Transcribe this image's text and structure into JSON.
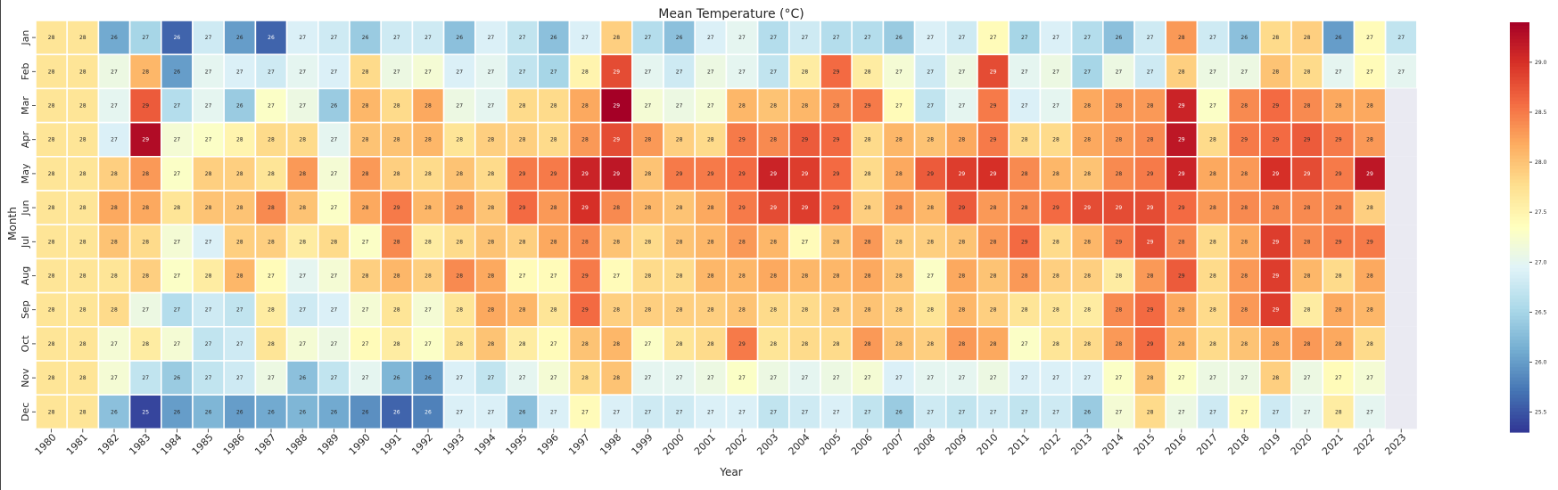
{
  "chart_data": {
    "type": "heatmap",
    "title": "Mean Temperature (°C)",
    "xlabel": "Year",
    "ylabel": "Month",
    "colormap": "RdYlBu_r",
    "missing_color": "#eaeaf2",
    "vmin": 25.3,
    "vmax": 29.4,
    "colorbar_ticks": [
      "25.5",
      "26.0",
      "26.5",
      "27.0",
      "27.5",
      "28.0",
      "28.5",
      "29.0"
    ],
    "x": [
      "1980",
      "1981",
      "1982",
      "1983",
      "1984",
      "1985",
      "1986",
      "1987",
      "1988",
      "1989",
      "1990",
      "1991",
      "1992",
      "1993",
      "1994",
      "1995",
      "1996",
      "1997",
      "1998",
      "1999",
      "2000",
      "2001",
      "2002",
      "2003",
      "2004",
      "2005",
      "2006",
      "2007",
      "2008",
      "2009",
      "2010",
      "2011",
      "2012",
      "2013",
      "2014",
      "2015",
      "2016",
      "2017",
      "2018",
      "2019",
      "2020",
      "2021",
      "2022",
      "2023"
    ],
    "y": [
      "Jan",
      "Feb",
      "Mar",
      "Apr",
      "May",
      "Jun",
      "Jul",
      "Aug",
      "Sep",
      "Oct",
      "Nov",
      "Dec"
    ],
    "values": [
      [
        27.7,
        27.7,
        26.1,
        26.5,
        25.6,
        26.8,
        26.0,
        25.6,
        26.9,
        26.8,
        26.4,
        26.8,
        26.8,
        26.3,
        26.9,
        26.7,
        26.3,
        26.9,
        27.9,
        26.6,
        26.3,
        26.9,
        27.0,
        26.6,
        26.8,
        26.6,
        26.6,
        26.4,
        26.9,
        26.8,
        27.4,
        26.5,
        26.9,
        26.6,
        26.3,
        26.8,
        28.3,
        26.8,
        26.3,
        27.8,
        27.9,
        26.0,
        27.4,
        26.7
      ],
      [
        27.7,
        27.7,
        27.1,
        28.1,
        26.0,
        27.0,
        26.9,
        26.8,
        27.0,
        26.9,
        27.8,
        27.1,
        27.2,
        26.9,
        27.0,
        26.7,
        26.5,
        27.5,
        28.8,
        27.0,
        26.8,
        27.1,
        27.0,
        26.7,
        27.6,
        28.6,
        27.6,
        27.2,
        26.8,
        27.1,
        28.8,
        27.0,
        27.1,
        26.5,
        27.1,
        26.8,
        27.9,
        27.1,
        27.1,
        28.0,
        27.8,
        27.0,
        27.4,
        27.0
      ],
      [
        27.7,
        27.7,
        27.0,
        28.7,
        26.6,
        27.0,
        26.4,
        27.3,
        27.1,
        26.4,
        28.1,
        27.8,
        28.2,
        27.1,
        27.0,
        27.8,
        27.8,
        28.2,
        29.4,
        27.2,
        27.1,
        27.2,
        28.1,
        28.0,
        28.1,
        28.4,
        28.5,
        27.4,
        26.7,
        27.0,
        28.5,
        26.9,
        27.0,
        28.2,
        28.3,
        28.3,
        29.1,
        27.3,
        28.4,
        28.6,
        28.4,
        28.2,
        28.2,
        null
      ],
      [
        27.7,
        27.7,
        26.9,
        29.3,
        27.2,
        27.3,
        27.5,
        27.8,
        27.8,
        27.0,
        28.0,
        28.0,
        28.1,
        27.7,
        27.9,
        27.9,
        27.8,
        28.3,
        28.8,
        28.3,
        27.9,
        27.8,
        28.5,
        28.4,
        28.7,
        28.6,
        27.8,
        28.1,
        28.0,
        28.2,
        28.5,
        27.8,
        27.8,
        28.2,
        28.3,
        28.4,
        29.2,
        27.8,
        28.5,
        28.6,
        28.7,
        28.5,
        28.3,
        null
      ],
      [
        27.7,
        27.7,
        27.9,
        28.3,
        27.3,
        27.9,
        27.9,
        27.7,
        28.3,
        27.2,
        28.3,
        27.9,
        27.8,
        28.0,
        27.8,
        28.5,
        28.5,
        29.1,
        29.2,
        28.0,
        28.5,
        28.5,
        28.6,
        29.1,
        28.9,
        28.6,
        27.8,
        28.2,
        28.7,
        28.9,
        29.0,
        28.4,
        28.1,
        28.0,
        28.4,
        28.5,
        29.1,
        28.2,
        28.3,
        29.0,
        28.8,
        28.5,
        29.2,
        null
      ],
      [
        27.7,
        27.7,
        28.2,
        28.2,
        27.7,
        28.0,
        28.0,
        28.4,
        28.0,
        27.3,
        28.2,
        28.5,
        28.1,
        28.3,
        28.0,
        28.6,
        28.3,
        29.0,
        28.4,
        28.1,
        28.0,
        28.2,
        28.5,
        28.8,
        28.9,
        28.6,
        27.9,
        28.3,
        28.1,
        28.7,
        28.3,
        28.4,
        28.6,
        28.8,
        28.8,
        28.8,
        28.6,
        28.3,
        28.4,
        28.4,
        28.4,
        28.4,
        27.9,
        null
      ],
      [
        27.7,
        27.7,
        28.0,
        27.8,
        27.2,
        26.9,
        27.9,
        27.9,
        27.6,
        27.8,
        27.3,
        28.4,
        27.6,
        27.8,
        28.0,
        27.9,
        28.2,
        28.4,
        28.0,
        27.8,
        28.0,
        28.1,
        28.3,
        28.1,
        27.4,
        28.0,
        28.3,
        27.9,
        27.9,
        28.0,
        28.3,
        28.6,
        27.8,
        28.1,
        28.5,
        28.8,
        28.4,
        27.8,
        28.2,
        28.9,
        28.4,
        28.5,
        28.5,
        null
      ],
      [
        27.7,
        27.7,
        27.7,
        27.9,
        27.3,
        27.6,
        28.1,
        27.4,
        27.0,
        27.2,
        27.9,
        28.1,
        27.9,
        28.4,
        28.2,
        27.4,
        27.4,
        28.5,
        27.4,
        27.8,
        27.8,
        28.1,
        28.1,
        28.2,
        28.1,
        28.1,
        28.2,
        28.0,
        27.3,
        28.2,
        28.0,
        28.3,
        27.9,
        27.9,
        27.6,
        28.3,
        28.7,
        27.8,
        28.3,
        28.9,
        28.1,
        27.8,
        28.2,
        null
      ],
      [
        27.7,
        27.7,
        27.8,
        27.1,
        26.6,
        26.8,
        26.7,
        27.6,
        26.8,
        26.9,
        27.2,
        27.7,
        27.2,
        27.7,
        28.2,
        28.1,
        27.7,
        28.6,
        27.9,
        27.9,
        27.9,
        27.9,
        28.0,
        27.8,
        27.8,
        27.9,
        28.0,
        27.9,
        27.7,
        28.1,
        27.9,
        27.7,
        27.7,
        27.6,
        28.4,
        28.6,
        28.2,
        27.8,
        28.3,
        28.9,
        27.6,
        28.2,
        28.1,
        null
      ],
      [
        27.7,
        27.7,
        27.2,
        27.6,
        27.2,
        26.7,
        26.8,
        27.7,
        27.2,
        27.1,
        27.4,
        27.6,
        27.3,
        27.7,
        28.0,
        27.6,
        27.4,
        28.0,
        28.1,
        27.3,
        27.7,
        27.8,
        28.5,
        27.7,
        27.8,
        27.8,
        28.3,
        28.0,
        27.9,
        28.3,
        28.2,
        27.3,
        27.7,
        27.8,
        28.3,
        28.6,
        28.1,
        27.8,
        28.0,
        28.2,
        28.3,
        28.2,
        27.8,
        null
      ],
      [
        27.7,
        27.7,
        27.2,
        26.7,
        26.4,
        26.7,
        26.8,
        27.1,
        26.3,
        26.7,
        27.0,
        26.2,
        26.0,
        26.9,
        26.7,
        27.0,
        27.2,
        27.8,
        28.0,
        27.0,
        27.0,
        27.1,
        27.3,
        27.1,
        27.0,
        27.1,
        27.2,
        26.9,
        27.0,
        27.0,
        27.1,
        26.9,
        26.9,
        26.9,
        27.3,
        28.0,
        27.3,
        27.1,
        27.1,
        27.9,
        27.1,
        27.4,
        27.2,
        null
      ],
      [
        27.7,
        27.7,
        26.3,
        25.4,
        26.0,
        26.2,
        26.0,
        26.1,
        26.2,
        26.1,
        25.9,
        25.6,
        25.8,
        26.9,
        26.9,
        26.3,
        26.9,
        27.4,
        26.9,
        26.8,
        26.8,
        26.9,
        26.9,
        26.7,
        26.8,
        26.9,
        26.7,
        26.4,
        26.8,
        26.7,
        26.8,
        26.7,
        26.8,
        26.4,
        27.2,
        27.8,
        27.1,
        26.8,
        27.4,
        26.8,
        27.0,
        27.6,
        27.0,
        null
      ]
    ]
  }
}
